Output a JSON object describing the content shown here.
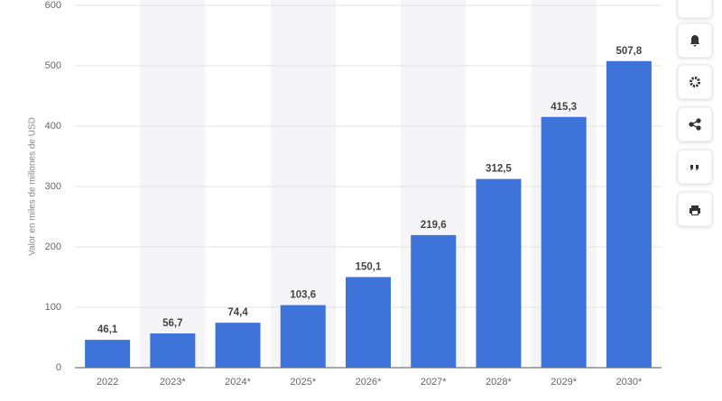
{
  "chart_data": {
    "type": "bar",
    "y_label": "Valor en miles de millones de USD",
    "categories": [
      "2022",
      "2023*",
      "2024*",
      "2025*",
      "2026*",
      "2027*",
      "2028*",
      "2029*",
      "2030*"
    ],
    "values": [
      46.1,
      56.7,
      74.4,
      103.6,
      150.1,
      219.6,
      312.5,
      415.3,
      507.8
    ],
    "value_labels": [
      "46,1",
      "56,7",
      "74,4",
      "103,6",
      "150,1",
      "219,6",
      "312,5",
      "415,3",
      "507,8"
    ],
    "color": "#3e73d9",
    "ylim": [
      0,
      600
    ],
    "yticks": [
      0,
      100,
      200,
      300,
      400,
      500,
      600
    ],
    "grid": true
  }
}
